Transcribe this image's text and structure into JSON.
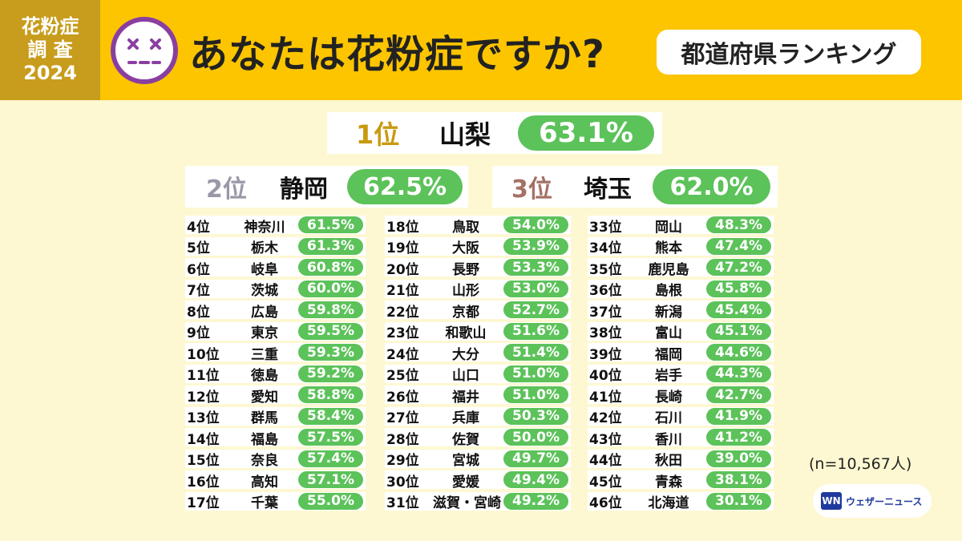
{
  "header": {
    "badge_lines": [
      "花粉症",
      "調 査",
      "2024"
    ],
    "title": "あなたは花粉症ですか?",
    "subtitle": "都道府県ランキング"
  },
  "top3": [
    {
      "rank": "1位",
      "pref": "山梨",
      "pct": "63.1%"
    },
    {
      "rank": "2位",
      "pref": "静岡",
      "pct": "62.5%"
    },
    {
      "rank": "3位",
      "pref": "埼玉",
      "pct": "62.0%"
    }
  ],
  "columns": [
    [
      {
        "rank": "4位",
        "pref": "神奈川",
        "pct": "61.5%"
      },
      {
        "rank": "5位",
        "pref": "栃木",
        "pct": "61.3%"
      },
      {
        "rank": "6位",
        "pref": "岐阜",
        "pct": "60.8%"
      },
      {
        "rank": "7位",
        "pref": "茨城",
        "pct": "60.0%"
      },
      {
        "rank": "8位",
        "pref": "広島",
        "pct": "59.8%"
      },
      {
        "rank": "9位",
        "pref": "東京",
        "pct": "59.5%"
      },
      {
        "rank": "10位",
        "pref": "三重",
        "pct": "59.3%"
      },
      {
        "rank": "11位",
        "pref": "徳島",
        "pct": "59.2%"
      },
      {
        "rank": "12位",
        "pref": "愛知",
        "pct": "58.8%"
      },
      {
        "rank": "13位",
        "pref": "群馬",
        "pct": "58.4%"
      },
      {
        "rank": "14位",
        "pref": "福島",
        "pct": "57.5%"
      },
      {
        "rank": "15位",
        "pref": "奈良",
        "pct": "57.4%"
      },
      {
        "rank": "16位",
        "pref": "高知",
        "pct": "57.1%"
      },
      {
        "rank": "17位",
        "pref": "千葉",
        "pct": "55.0%"
      }
    ],
    [
      {
        "rank": "18位",
        "pref": "鳥取",
        "pct": "54.0%"
      },
      {
        "rank": "19位",
        "pref": "大阪",
        "pct": "53.9%"
      },
      {
        "rank": "20位",
        "pref": "長野",
        "pct": "53.3%"
      },
      {
        "rank": "21位",
        "pref": "山形",
        "pct": "53.0%"
      },
      {
        "rank": "22位",
        "pref": "京都",
        "pct": "52.7%"
      },
      {
        "rank": "23位",
        "pref": "和歌山",
        "pct": "51.6%"
      },
      {
        "rank": "24位",
        "pref": "大分",
        "pct": "51.4%"
      },
      {
        "rank": "25位",
        "pref": "山口",
        "pct": "51.0%"
      },
      {
        "rank": "26位",
        "pref": "福井",
        "pct": "51.0%"
      },
      {
        "rank": "27位",
        "pref": "兵庫",
        "pct": "50.3%"
      },
      {
        "rank": "28位",
        "pref": "佐賀",
        "pct": "50.0%"
      },
      {
        "rank": "29位",
        "pref": "宮城",
        "pct": "49.7%"
      },
      {
        "rank": "30位",
        "pref": "愛媛",
        "pct": "49.4%"
      },
      {
        "rank": "31位",
        "pref": "滋賀・宮崎",
        "pct": "49.2%"
      }
    ],
    [
      {
        "rank": "33位",
        "pref": "岡山",
        "pct": "48.3%"
      },
      {
        "rank": "34位",
        "pref": "熊本",
        "pct": "47.4%"
      },
      {
        "rank": "35位",
        "pref": "鹿児島",
        "pct": "47.2%"
      },
      {
        "rank": "36位",
        "pref": "島根",
        "pct": "45.8%"
      },
      {
        "rank": "37位",
        "pref": "新潟",
        "pct": "45.4%"
      },
      {
        "rank": "38位",
        "pref": "富山",
        "pct": "45.1%"
      },
      {
        "rank": "39位",
        "pref": "福岡",
        "pct": "44.6%"
      },
      {
        "rank": "40位",
        "pref": "岩手",
        "pct": "44.3%"
      },
      {
        "rank": "41位",
        "pref": "長崎",
        "pct": "42.7%"
      },
      {
        "rank": "42位",
        "pref": "石川",
        "pct": "41.9%"
      },
      {
        "rank": "43位",
        "pref": "香川",
        "pct": "41.2%"
      },
      {
        "rank": "44位",
        "pref": "秋田",
        "pct": "39.0%"
      },
      {
        "rank": "45位",
        "pref": "青森",
        "pct": "38.1%"
      },
      {
        "rank": "46位",
        "pref": "北海道",
        "pct": "30.1%"
      }
    ]
  ],
  "footer": {
    "sample": "(n=10,567人)",
    "logo_mark": "WN",
    "logo_text": "ウェザーニュース"
  },
  "colors": {
    "header_bg": "#fcc500",
    "badge_bg": "#c89c1c",
    "pct_green": "#5cc25a",
    "page_bg": "#fdf8d2"
  }
}
